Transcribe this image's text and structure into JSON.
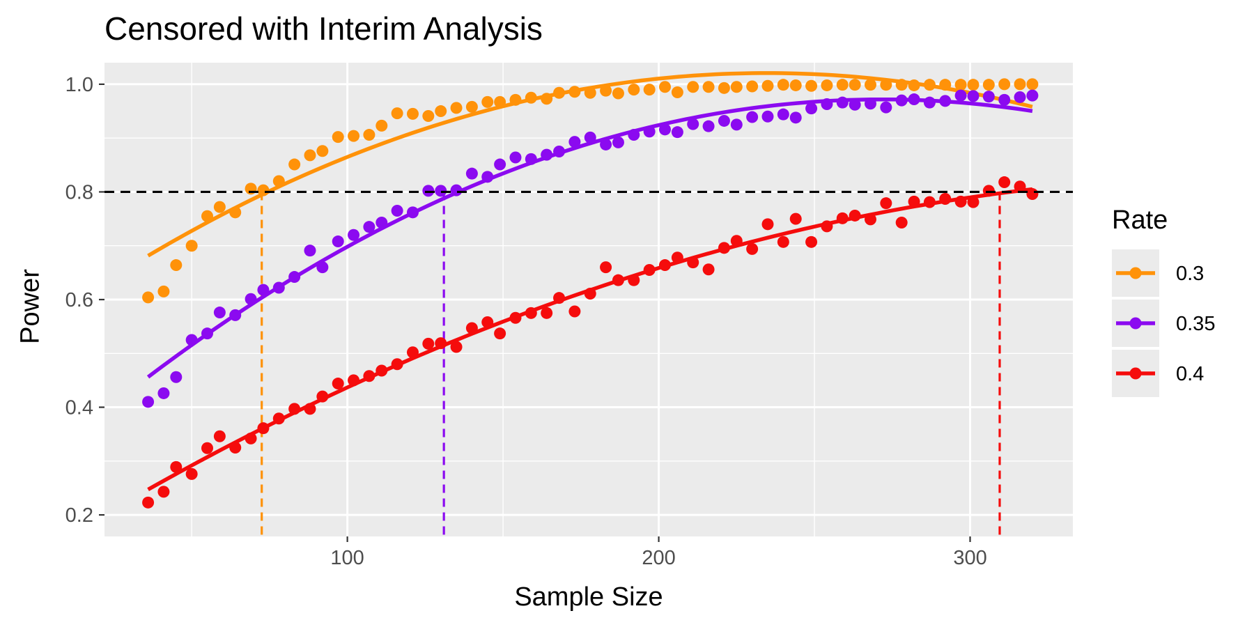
{
  "chart_data": {
    "type": "scatter",
    "title": "Censored with Interim Analysis",
    "xlabel": "Sample Size",
    "ylabel": "Power",
    "xlim": [
      22,
      333
    ],
    "ylim": [
      0.16,
      1.04
    ],
    "x_ticks": [
      100,
      200,
      300
    ],
    "y_ticks": [
      0.2,
      0.4,
      0.6,
      0.8,
      1.0
    ],
    "x_tick_labels": [
      "100",
      "200",
      "300"
    ],
    "y_tick_labels": [
      "0.2",
      "0.4",
      "0.6",
      "0.8",
      "1.0"
    ],
    "grid": true,
    "legend": {
      "title": "Rate",
      "position": "right"
    },
    "reference_line": {
      "y": 0.8,
      "style": "dashed",
      "color": "#000000"
    },
    "series": [
      {
        "name": "0.3",
        "color": "#FF9209",
        "points": [
          [
            36,
            0.604
          ],
          [
            41,
            0.615
          ],
          [
            45,
            0.664
          ],
          [
            50,
            0.7
          ],
          [
            55,
            0.755
          ],
          [
            59,
            0.772
          ],
          [
            64,
            0.762
          ],
          [
            69,
            0.806
          ],
          [
            73,
            0.803
          ],
          [
            78,
            0.82
          ],
          [
            83,
            0.851
          ],
          [
            88,
            0.868
          ],
          [
            92,
            0.876
          ],
          [
            97,
            0.902
          ],
          [
            102,
            0.904
          ],
          [
            107,
            0.906
          ],
          [
            111,
            0.923
          ],
          [
            116,
            0.946
          ],
          [
            121,
            0.945
          ],
          [
            126,
            0.941
          ],
          [
            130,
            0.95
          ],
          [
            135,
            0.956
          ],
          [
            140,
            0.958
          ],
          [
            145,
            0.967
          ],
          [
            149,
            0.967
          ],
          [
            154,
            0.971
          ],
          [
            159,
            0.975
          ],
          [
            164,
            0.973
          ],
          [
            168,
            0.984
          ],
          [
            173,
            0.986
          ],
          [
            178,
            0.984
          ],
          [
            183,
            0.988
          ],
          [
            187,
            0.983
          ],
          [
            192,
            0.99
          ],
          [
            197,
            0.99
          ],
          [
            202,
            0.995
          ],
          [
            206,
            0.985
          ],
          [
            211,
            0.995
          ],
          [
            216,
            0.995
          ],
          [
            221,
            0.993
          ],
          [
            225,
            0.995
          ],
          [
            230,
            0.996
          ],
          [
            235,
            0.997
          ],
          [
            240,
            0.999
          ],
          [
            244,
            0.998
          ],
          [
            249,
            0.997
          ],
          [
            254,
            0.998
          ],
          [
            259,
            0.999
          ],
          [
            263,
            0.999
          ],
          [
            268,
            0.999
          ],
          [
            273,
            0.999
          ],
          [
            278,
            0.999
          ],
          [
            282,
            0.998
          ],
          [
            287,
            0.999
          ],
          [
            292,
            0.999
          ],
          [
            297,
            0.999
          ],
          [
            301,
            0.999
          ],
          [
            306,
            0.999
          ],
          [
            311,
            1.0
          ],
          [
            316,
            1.0
          ],
          [
            320,
            1.0
          ]
        ],
        "fit_range": [
          36,
          320
        ],
        "crossing_x": 72.5
      },
      {
        "name": "0.35",
        "color": "#8B0AF0",
        "points": [
          [
            36,
            0.41
          ],
          [
            41,
            0.426
          ],
          [
            45,
            0.456
          ],
          [
            50,
            0.525
          ],
          [
            55,
            0.537
          ],
          [
            59,
            0.576
          ],
          [
            64,
            0.571
          ],
          [
            69,
            0.601
          ],
          [
            73,
            0.618
          ],
          [
            78,
            0.622
          ],
          [
            83,
            0.642
          ],
          [
            88,
            0.691
          ],
          [
            92,
            0.66
          ],
          [
            97,
            0.708
          ],
          [
            102,
            0.72
          ],
          [
            107,
            0.735
          ],
          [
            111,
            0.743
          ],
          [
            116,
            0.765
          ],
          [
            121,
            0.762
          ],
          [
            126,
            0.802
          ],
          [
            130,
            0.802
          ],
          [
            135,
            0.803
          ],
          [
            140,
            0.834
          ],
          [
            145,
            0.828
          ],
          [
            149,
            0.851
          ],
          [
            154,
            0.864
          ],
          [
            159,
            0.861
          ],
          [
            164,
            0.869
          ],
          [
            168,
            0.875
          ],
          [
            173,
            0.893
          ],
          [
            178,
            0.901
          ],
          [
            183,
            0.888
          ],
          [
            187,
            0.892
          ],
          [
            192,
            0.906
          ],
          [
            197,
            0.912
          ],
          [
            202,
            0.916
          ],
          [
            206,
            0.911
          ],
          [
            211,
            0.926
          ],
          [
            216,
            0.922
          ],
          [
            221,
            0.932
          ],
          [
            225,
            0.925
          ],
          [
            230,
            0.939
          ],
          [
            235,
            0.94
          ],
          [
            240,
            0.944
          ],
          [
            244,
            0.938
          ],
          [
            249,
            0.955
          ],
          [
            254,
            0.963
          ],
          [
            259,
            0.966
          ],
          [
            263,
            0.962
          ],
          [
            268,
            0.964
          ],
          [
            273,
            0.957
          ],
          [
            278,
            0.97
          ],
          [
            282,
            0.972
          ],
          [
            287,
            0.966
          ],
          [
            292,
            0.969
          ],
          [
            297,
            0.979
          ],
          [
            301,
            0.978
          ],
          [
            306,
            0.977
          ],
          [
            311,
            0.971
          ],
          [
            316,
            0.976
          ],
          [
            320,
            0.979
          ]
        ],
        "fit_range": [
          36,
          320
        ],
        "crossing_x": 131
      },
      {
        "name": "0.4",
        "color": "#F50C0C",
        "points": [
          [
            36,
            0.223
          ],
          [
            41,
            0.243
          ],
          [
            45,
            0.289
          ],
          [
            50,
            0.276
          ],
          [
            55,
            0.324
          ],
          [
            59,
            0.346
          ],
          [
            64,
            0.325
          ],
          [
            69,
            0.342
          ],
          [
            73,
            0.361
          ],
          [
            78,
            0.379
          ],
          [
            83,
            0.397
          ],
          [
            88,
            0.397
          ],
          [
            92,
            0.42
          ],
          [
            97,
            0.444
          ],
          [
            102,
            0.45
          ],
          [
            107,
            0.458
          ],
          [
            111,
            0.468
          ],
          [
            116,
            0.48
          ],
          [
            121,
            0.502
          ],
          [
            126,
            0.518
          ],
          [
            130,
            0.519
          ],
          [
            135,
            0.512
          ],
          [
            140,
            0.547
          ],
          [
            145,
            0.558
          ],
          [
            149,
            0.537
          ],
          [
            154,
            0.566
          ],
          [
            159,
            0.575
          ],
          [
            164,
            0.575
          ],
          [
            168,
            0.603
          ],
          [
            173,
            0.578
          ],
          [
            178,
            0.611
          ],
          [
            183,
            0.66
          ],
          [
            187,
            0.636
          ],
          [
            192,
            0.636
          ],
          [
            197,
            0.655
          ],
          [
            202,
            0.664
          ],
          [
            206,
            0.678
          ],
          [
            211,
            0.669
          ],
          [
            216,
            0.656
          ],
          [
            221,
            0.696
          ],
          [
            225,
            0.709
          ],
          [
            230,
            0.694
          ],
          [
            235,
            0.74
          ],
          [
            240,
            0.707
          ],
          [
            244,
            0.75
          ],
          [
            249,
            0.707
          ],
          [
            254,
            0.736
          ],
          [
            259,
            0.751
          ],
          [
            263,
            0.756
          ],
          [
            268,
            0.749
          ],
          [
            273,
            0.779
          ],
          [
            278,
            0.743
          ],
          [
            282,
            0.782
          ],
          [
            287,
            0.781
          ],
          [
            292,
            0.787
          ],
          [
            297,
            0.782
          ],
          [
            301,
            0.781
          ],
          [
            306,
            0.802
          ],
          [
            311,
            0.818
          ],
          [
            316,
            0.81
          ],
          [
            320,
            0.796
          ]
        ],
        "fit_range": [
          36,
          320
        ],
        "crossing_x": 309.5
      }
    ]
  }
}
